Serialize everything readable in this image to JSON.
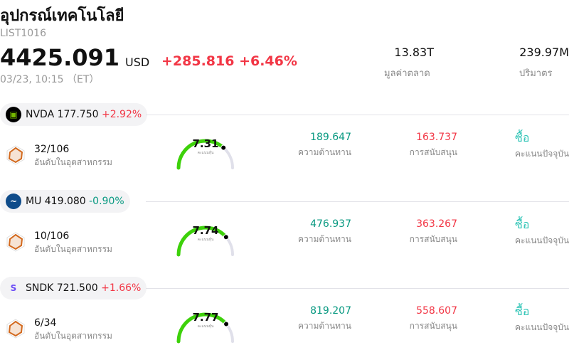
{
  "header": {
    "title": "อุปกรณ์เทคโนโลยี",
    "code": "LIST1016",
    "price": "4425.091",
    "currency": "USD",
    "change": "+285.816 +6.46%",
    "time": "03/23, 10:15 （ET）"
  },
  "stats": [
    {
      "value": "13.83T",
      "label": "มูลค่าตลาด"
    },
    {
      "value": "239.97M",
      "label": "ปริมาตร"
    }
  ],
  "stocks": [
    {
      "ticker": "NVDA 177.750",
      "change": "+2.92%",
      "dir": "up",
      "logo_bg": "#000",
      "logo_text": "▣",
      "logo_color": "#76b900",
      "rank": "32/106",
      "rank_label": "อันดับในอุตสาหกรรม",
      "score": 7.31,
      "score_text": "7.31",
      "score_label": "คะแนนหุ้น",
      "resistance": "189.647",
      "resistance_label": "ความต้านทาน",
      "support": "163.737",
      "support_label": "การสนับสนุน",
      "rating": "ซื้อ",
      "rating_label": "คะแนนปัจจุบัน"
    },
    {
      "ticker": "MU 419.080",
      "change": "-0.90%",
      "dir": "dn",
      "logo_bg": "#0f4c8a",
      "logo_text": "~",
      "logo_color": "#fff",
      "rank": "10/106",
      "rank_label": "อันดับในอุตสาหกรรม",
      "score": 7.74,
      "score_text": "7.74",
      "score_label": "คะแนนหุ้น",
      "resistance": "476.937",
      "resistance_label": "ความต้านทาน",
      "support": "363.267",
      "support_label": "การสนับสนุน",
      "rating": "ซื้อ",
      "rating_label": "คะแนนปัจจุบัน"
    },
    {
      "ticker": "SNDK 721.500",
      "change": "+1.66%",
      "dir": "up",
      "logo_bg": "#f3f3f5",
      "logo_text": "S",
      "logo_color": "#6b4cf6",
      "rank": "6/34",
      "rank_label": "อันดับในอุตสาหกรรม",
      "score": 7.77,
      "score_text": "7.77",
      "score_label": "คะแนนหุ้น",
      "resistance": "819.207",
      "resistance_label": "ความต้านทาน",
      "support": "558.607",
      "support_label": "การสนับสนุน",
      "rating": "ซื้อ",
      "rating_label": "คะแนนปัจจุบัน"
    }
  ]
}
